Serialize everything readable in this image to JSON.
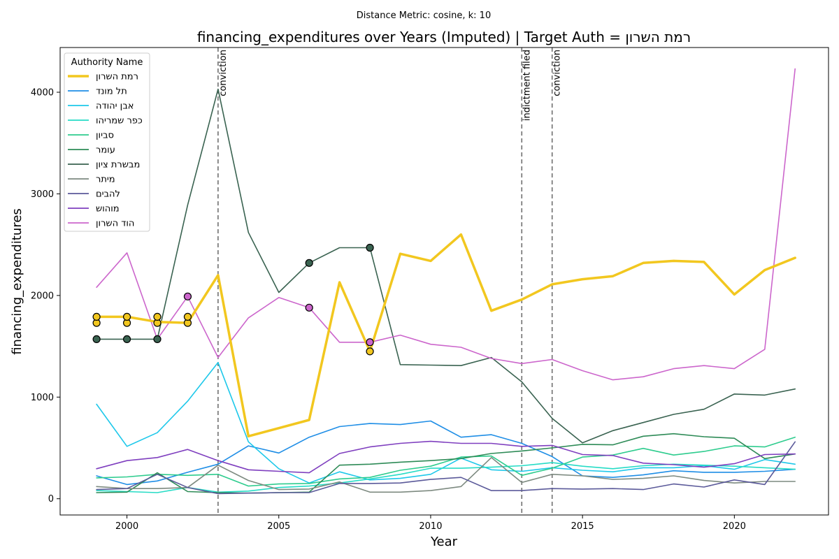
{
  "chart_data": {
    "type": "line",
    "suptitle": "Distance Metric: cosine, k: 10",
    "title": "financing_expenditures over Years (Imputed) | Target Auth = רמת השרון",
    "xlabel": "Year",
    "ylabel": "financing_expenditures",
    "xlim": [
      1997.8,
      2023.1
    ],
    "ylim": [
      -160,
      4440
    ],
    "xticks": [
      2000,
      2005,
      2010,
      2015,
      2020
    ],
    "yticks": [
      0,
      1000,
      2000,
      3000,
      4000
    ],
    "x": [
      1999,
      2000,
      2001,
      2002,
      2003,
      2004,
      2005,
      2006,
      2007,
      2008,
      2009,
      2010,
      2011,
      2012,
      2013,
      2014,
      2015,
      2016,
      2017,
      2018,
      2019,
      2020,
      2021,
      2022
    ],
    "legend_title": "Authority Name",
    "legend_position": "upper-left",
    "events": [
      {
        "year": 2003,
        "label": "conviction"
      },
      {
        "year": 2013,
        "label": "indictment filed"
      },
      {
        "year": 2014,
        "label": "conviction"
      }
    ],
    "series": [
      {
        "name": "רמת השרון",
        "color": "#f2c71f",
        "width": 3.5,
        "target": true,
        "values": [
          1790,
          1790,
          1740,
          1730,
          2200,
          615,
          695,
          775,
          2130,
          1450,
          2410,
          2340,
          2600,
          1850,
          1960,
          2110,
          2160,
          2190,
          2320,
          2340,
          2330,
          2010,
          2250,
          2370
        ],
        "markers": [
          [
            1999,
            1730
          ],
          [
            1999,
            1790
          ],
          [
            2000,
            1730
          ],
          [
            2000,
            1790
          ],
          [
            2001,
            1730
          ],
          [
            2001,
            1790
          ],
          [
            2002,
            1730
          ],
          [
            2002,
            1790
          ],
          [
            2008,
            1450
          ]
        ]
      },
      {
        "name": "תל מונד",
        "color": "#1f8ee6",
        "width": 1.6,
        "values": [
          225,
          140,
          175,
          260,
          340,
          520,
          450,
          605,
          710,
          740,
          730,
          765,
          605,
          630,
          545,
          415,
          225,
          210,
          235,
          275,
          260,
          260,
          270,
          290
        ]
      },
      {
        "name": "אבן יהודה",
        "color": "#1ec8ea",
        "width": 1.6,
        "values": [
          930,
          515,
          650,
          960,
          1340,
          560,
          295,
          155,
          265,
          185,
          200,
          240,
          400,
          285,
          270,
          305,
          280,
          265,
          305,
          305,
          325,
          290,
          385,
          340
        ]
      },
      {
        "name": "כפר שמריהו",
        "color": "#26dcc6",
        "width": 1.6,
        "values": [
          80,
          70,
          60,
          110,
          65,
          75,
          110,
          125,
          155,
          195,
          240,
          300,
          300,
          310,
          325,
          355,
          320,
          295,
          325,
          340,
          330,
          320,
          305,
          290
        ]
      },
      {
        "name": "סביון",
        "color": "#2ecc8e",
        "width": 1.6,
        "values": [
          205,
          215,
          240,
          230,
          240,
          125,
          145,
          150,
          195,
          210,
          280,
          320,
          410,
          420,
          230,
          300,
          410,
          430,
          495,
          430,
          465,
          520,
          510,
          605
        ]
      },
      {
        "name": "עומר",
        "color": "#2e8b57",
        "width": 1.6,
        "values": [
          60,
          65,
          255,
          70,
          60,
          55,
          60,
          65,
          330,
          340,
          360,
          375,
          395,
          445,
          470,
          500,
          535,
          530,
          615,
          640,
          610,
          595,
          395,
          440
        ]
      },
      {
        "name": "מבשרת ציון",
        "color": "#3a6351",
        "width": 1.6,
        "values": [
          1570,
          1570,
          1570,
          2890,
          4030,
          2620,
          2030,
          2320,
          2470,
          2470,
          1320,
          1315,
          1310,
          1390,
          1150,
          790,
          550,
          670,
          750,
          830,
          880,
          1030,
          1020,
          1080
        ],
        "markers": [
          [
            1999,
            1570
          ],
          [
            2000,
            1570
          ],
          [
            2001,
            1570
          ],
          [
            2006,
            2320
          ],
          [
            2008,
            2470
          ]
        ]
      },
      {
        "name": "מיתר",
        "color": "#7d8a80",
        "width": 1.6,
        "values": [
          120,
          100,
          100,
          110,
          330,
          180,
          90,
          95,
          165,
          65,
          65,
          80,
          120,
          405,
          160,
          240,
          225,
          190,
          200,
          225,
          180,
          155,
          170,
          170
        ]
      },
      {
        "name": "להבים",
        "color": "#5b5a9a",
        "width": 1.6,
        "values": [
          90,
          100,
          240,
          110,
          50,
          55,
          60,
          60,
          150,
          150,
          155,
          190,
          210,
          80,
          80,
          100,
          95,
          100,
          90,
          145,
          115,
          185,
          140,
          560
        ]
      },
      {
        "name": "מוהוש",
        "color": "#7f3fbf",
        "width": 1.6,
        "values": [
          295,
          375,
          405,
          485,
          375,
          285,
          270,
          255,
          445,
          510,
          545,
          565,
          545,
          545,
          515,
          525,
          435,
          425,
          350,
          335,
          310,
          345,
          435,
          440
        ]
      },
      {
        "name": "הוד השרון",
        "color": "#cc66cc",
        "width": 1.6,
        "values": [
          2080,
          2420,
          1570,
          1990,
          1390,
          1780,
          1980,
          1880,
          1540,
          1540,
          1610,
          1520,
          1490,
          1380,
          1330,
          1370,
          1260,
          1170,
          1200,
          1280,
          1310,
          1280,
          1470,
          4230
        ],
        "markers": [
          [
            2002,
            1990
          ],
          [
            2006,
            1880
          ],
          [
            2008,
            1540
          ]
        ]
      }
    ]
  }
}
